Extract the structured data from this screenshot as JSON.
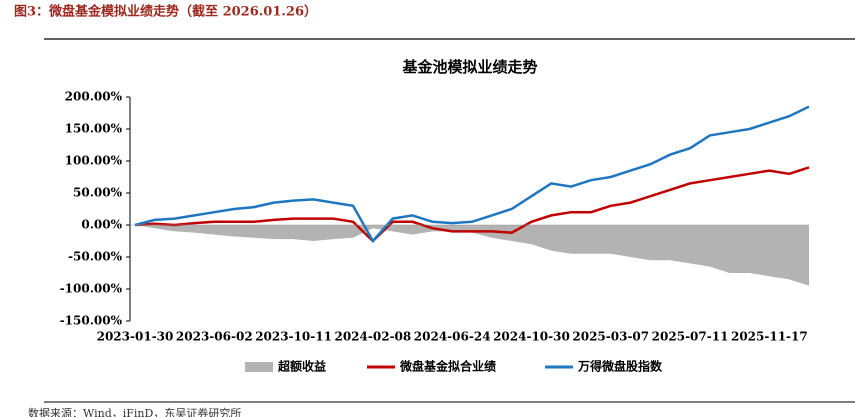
{
  "header": {
    "title": "图3：微盘基金模拟业绩走势（截至 2026.01.26）"
  },
  "chart_data": {
    "type": "line",
    "title": "基金池模拟业绩走势",
    "categories": [
      "2023-01-30",
      null,
      null,
      null,
      "2023-06-02",
      null,
      null,
      null,
      "2023-10-11",
      null,
      null,
      null,
      "2024-02-08",
      null,
      null,
      null,
      "2024-06-24",
      null,
      null,
      null,
      "2024-10-30",
      null,
      null,
      null,
      "2025-03-07",
      null,
      null,
      null,
      "2025-07-11",
      null,
      null,
      null,
      "2025-11-17",
      null,
      null
    ],
    "ylim": [
      -150,
      200
    ],
    "yticks": [
      {
        "value": -150,
        "label": "-150.00%"
      },
      {
        "value": -100,
        "label": "-100.00%"
      },
      {
        "value": -50,
        "label": "-50.00%"
      },
      {
        "value": 0,
        "label": "0.00%"
      },
      {
        "value": 50,
        "label": "50.00%"
      },
      {
        "value": 100,
        "label": "100.00%"
      },
      {
        "value": 150,
        "label": "150.00%"
      },
      {
        "value": 200,
        "label": "200.00%"
      }
    ],
    "legend": "bottom",
    "series": [
      {
        "name": "超额收益",
        "type": "area",
        "color": "#b3b3b3",
        "values": [
          0,
          -5,
          -10,
          -12,
          -15,
          -18,
          -20,
          -22,
          -22,
          -25,
          -22,
          -20,
          -5,
          -10,
          -15,
          -10,
          -10,
          -12,
          -20,
          -25,
          -30,
          -40,
          -45,
          -45,
          -45,
          -50,
          -55,
          -55,
          -60,
          -65,
          -75,
          -75,
          -80,
          -85,
          -95
        ]
      },
      {
        "name": "微盘基金拟合业绩",
        "type": "line",
        "color": "#c00000",
        "values": [
          0,
          2,
          0,
          3,
          5,
          5,
          5,
          8,
          10,
          10,
          10,
          5,
          -25,
          5,
          5,
          -5,
          -10,
          -10,
          -10,
          -12,
          5,
          15,
          20,
          20,
          30,
          35,
          45,
          55,
          65,
          70,
          75,
          80,
          85,
          80,
          90
        ]
      },
      {
        "name": "万得微盘股指数",
        "type": "line",
        "color": "#1f77c0",
        "values": [
          0,
          8,
          10,
          15,
          20,
          25,
          28,
          35,
          38,
          40,
          35,
          30,
          -25,
          10,
          15,
          5,
          3,
          5,
          15,
          25,
          45,
          65,
          60,
          70,
          75,
          85,
          95,
          110,
          120,
          140,
          145,
          150,
          160,
          170,
          185
        ]
      }
    ]
  },
  "footer": {
    "source": "数据来源：Wind，iFinD，东吴证券研究所"
  }
}
